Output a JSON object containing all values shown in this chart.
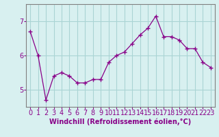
{
  "x": [
    0,
    1,
    2,
    3,
    4,
    5,
    6,
    7,
    8,
    9,
    10,
    11,
    12,
    13,
    14,
    15,
    16,
    17,
    18,
    19,
    20,
    21,
    22,
    23
  ],
  "y": [
    6.7,
    6.0,
    4.7,
    5.4,
    5.5,
    5.4,
    5.2,
    5.2,
    5.3,
    5.3,
    5.8,
    6.0,
    6.1,
    6.35,
    6.6,
    6.8,
    7.15,
    6.55,
    6.55,
    6.45,
    6.2,
    6.2,
    5.8,
    5.65
  ],
  "line_color": "#880088",
  "marker": "+",
  "bg_color": "#d8f0f0",
  "grid_color": "#aad4d4",
  "xlabel": "Windchill (Refroidissement éolien,°C)",
  "ylim": [
    4.5,
    7.5
  ],
  "yticks": [
    5,
    6,
    7
  ],
  "xlim": [
    -0.5,
    23.5
  ],
  "spine_color": "#808080",
  "xlabel_fontsize": 7,
  "tick_fontsize": 7,
  "markersize": 4,
  "linewidth": 0.9
}
